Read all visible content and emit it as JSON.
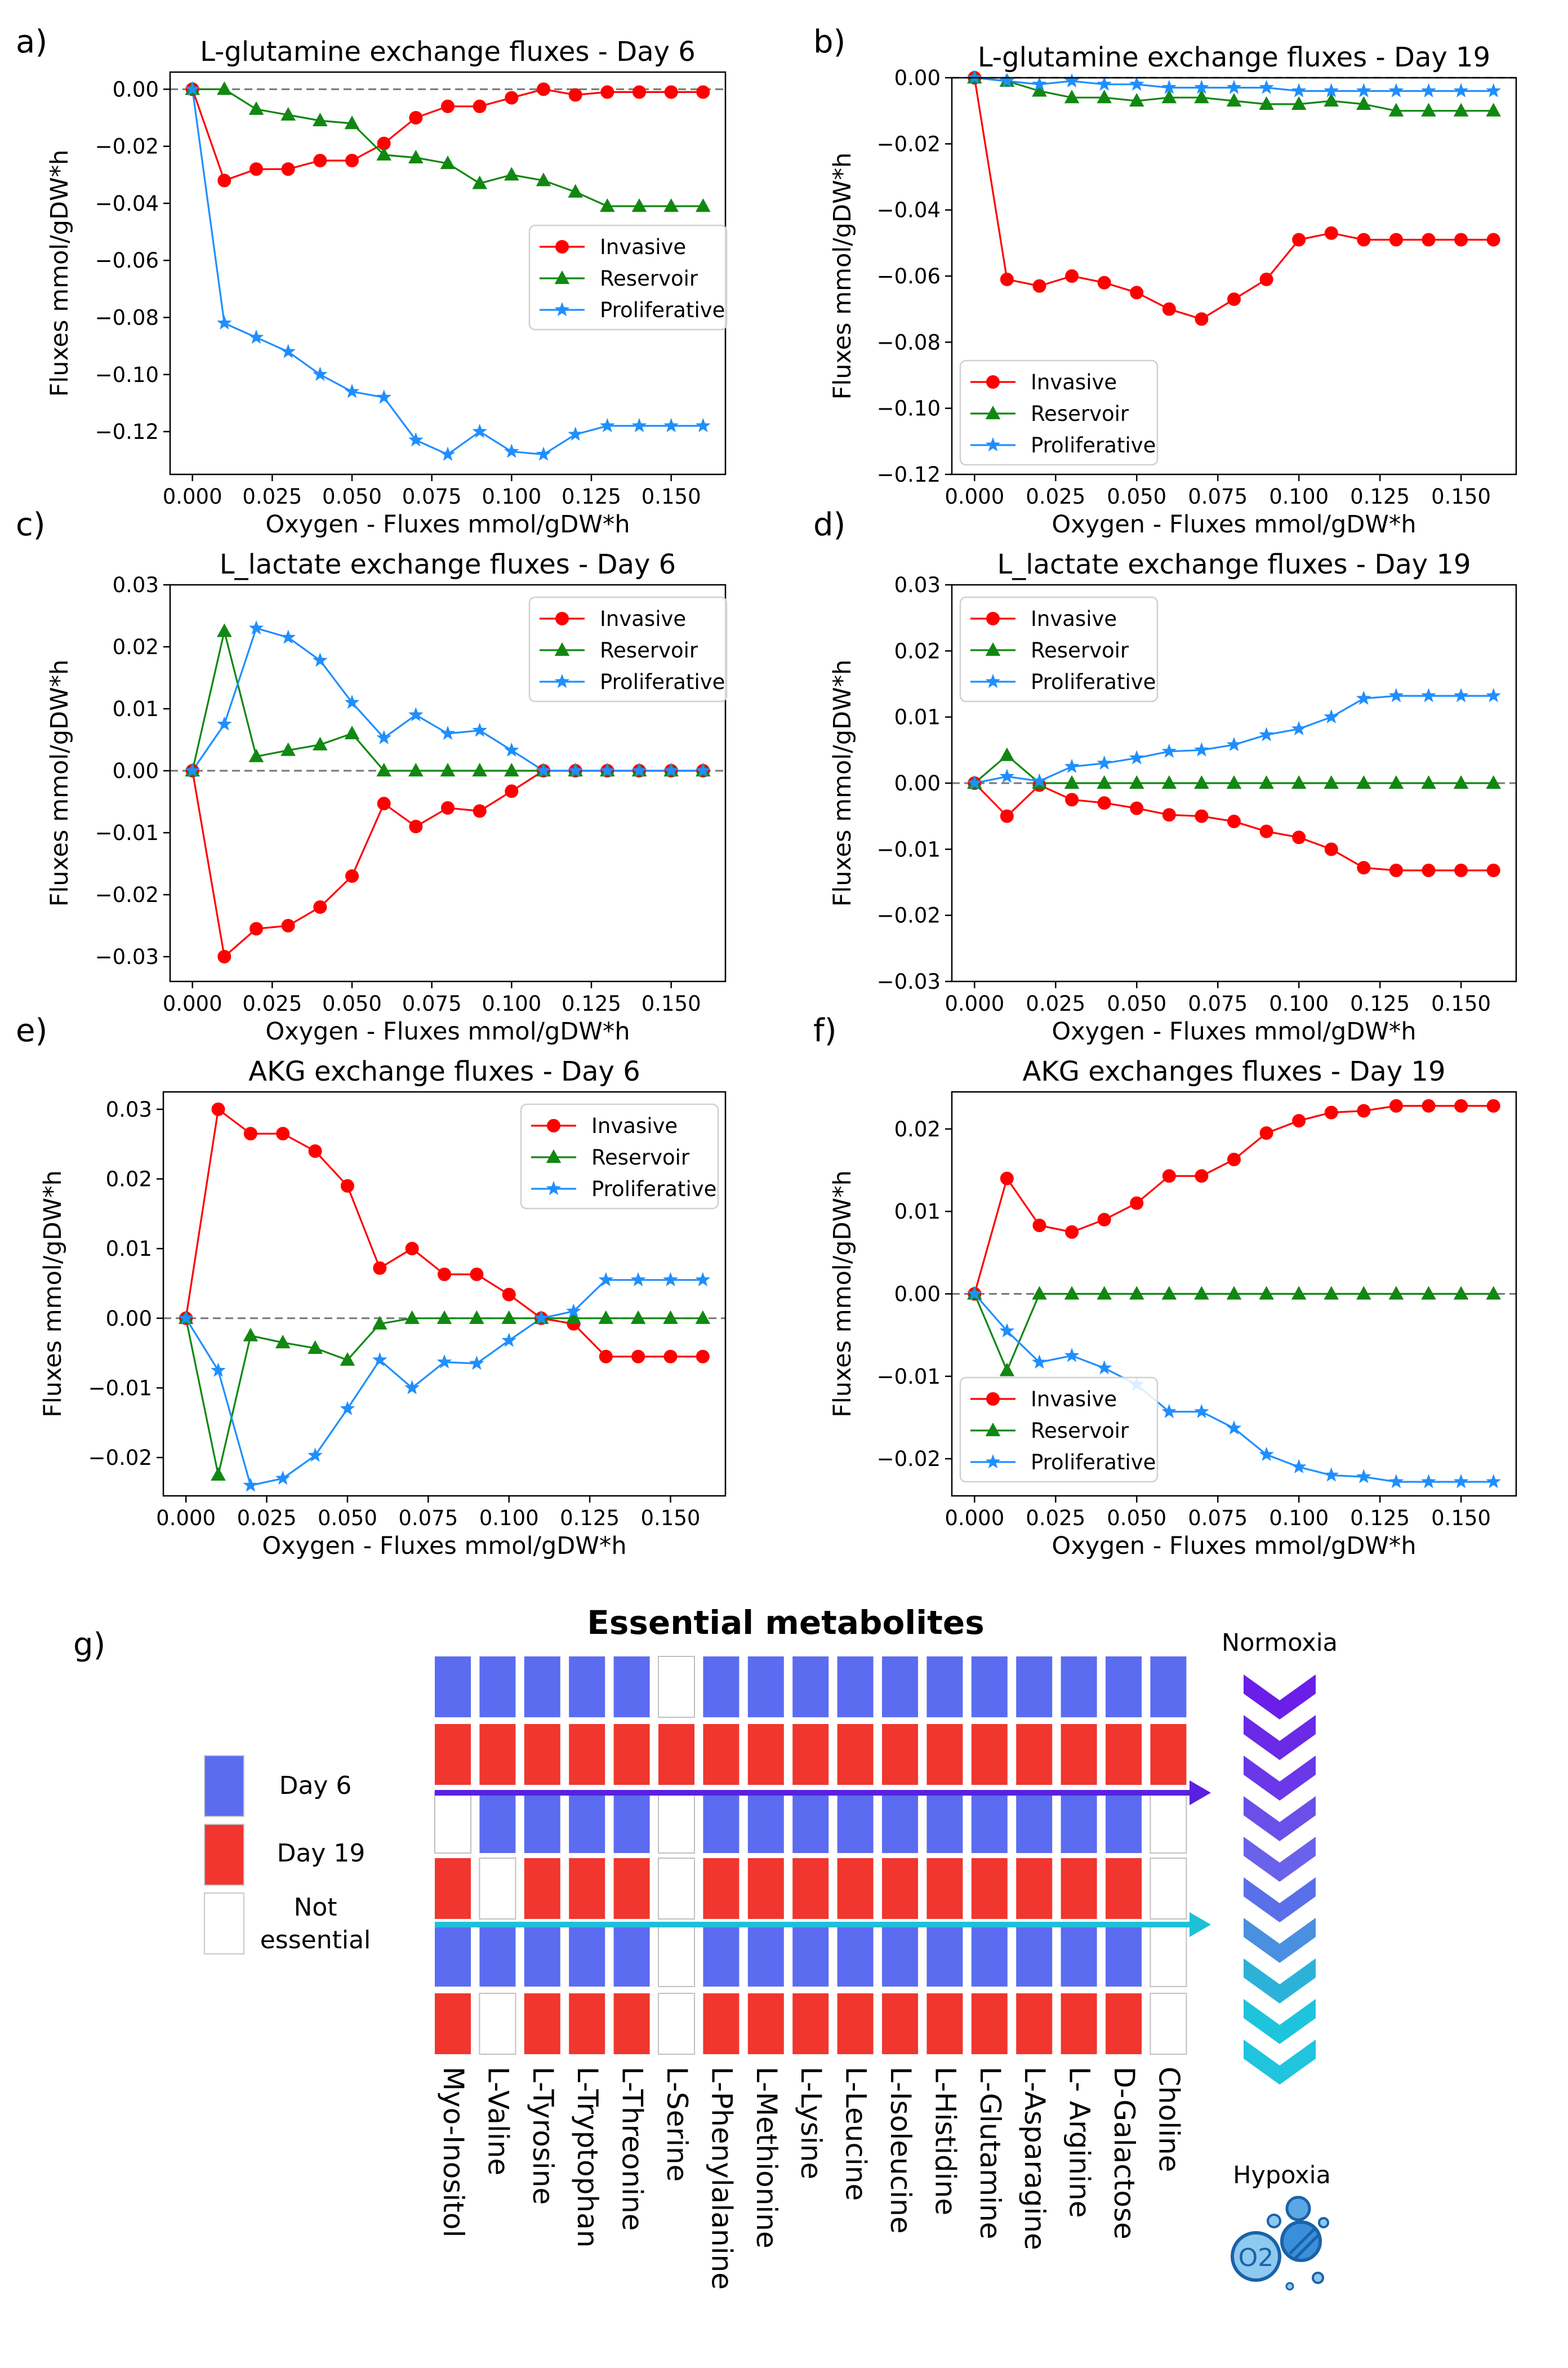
{
  "figure": {
    "panel_g": {
      "label": "g)",
      "title": "Essential metabolites",
      "legend": [
        {
          "name": "Day 6",
          "color": "#5b6cf0"
        },
        {
          "name": "Day 19",
          "color": "#f0362f"
        },
        {
          "name": "Not",
          "name2": "essential",
          "color": "#ffffff"
        }
      ],
      "metabolites": [
        "Myo-Inositol",
        "L-Valine",
        "L-Tyrosine",
        "L-Tryptophan",
        "L-Threonine",
        "L-Serine",
        "L-Phenylalanine",
        "L-Methionine",
        "L-Lysine",
        "L-Leucine",
        "L-Isoleucine",
        "L-Histidine",
        "L-Glutamine",
        "L-Asparagine",
        "L- Arginine",
        "D-Galactose",
        "Choline"
      ],
      "matrix": [
        "BBBBBNBBBBBBBBBBB",
        "RRRRRRRRRRRRRRRRR",
        "NBBBBNBBBBBBBBBBN",
        "RNRRRNRRRRRRRRRRN",
        "BBBBBNBBBBBBBBBBN",
        "RNRRRNRRRRRRRRRRN"
      ],
      "normoxia_label": "Normoxia",
      "hypoxia_label": "Hypoxia",
      "o2_label": "O2",
      "arrow_colors": [
        "#5a20e0",
        "#1ec0d8"
      ],
      "chevron_colors": [
        "#6a1ee8",
        "#6a2ae6",
        "#6a38e8",
        "#6a50e8",
        "#6a62ea",
        "#5a70e8",
        "#4a90e0",
        "#2cb2d8",
        "#1ec4dc",
        "#20c4de"
      ]
    }
  },
  "chart_data": [
    {
      "id": "a",
      "label": "a)",
      "type": "line",
      "title": "L-glutamine exchange fluxes - Day 6",
      "xlabel": "Oxygen - Fluxes mmol/gDW*h",
      "ylabel": "Fluxes mmol/gDW*h",
      "xlim": [
        -0.007,
        0.167
      ],
      "ylim": [
        -0.135,
        0.006
      ],
      "xticks": [
        0,
        0.025,
        0.05,
        0.075,
        0.1,
        0.125,
        0.15
      ],
      "xtick_labels": [
        "0.000",
        "0.025",
        "0.050",
        "0.075",
        "0.100",
        "0.125",
        "0.150"
      ],
      "yticks": [
        -0.12,
        -0.1,
        -0.08,
        -0.06,
        -0.04,
        -0.02,
        0
      ],
      "ytick_labels": [
        "−0.12",
        "−0.10",
        "−0.08",
        "−0.06",
        "−0.04",
        "−0.02",
        "0.00"
      ],
      "legend_position": "center-right",
      "x": [
        0,
        0.01,
        0.02,
        0.03,
        0.04,
        0.05,
        0.06,
        0.07,
        0.08,
        0.09,
        0.1,
        0.11,
        0.12,
        0.13,
        0.14,
        0.15,
        0.16
      ],
      "series": [
        {
          "name": "Invasive",
          "values": [
            0,
            -0.032,
            -0.028,
            -0.028,
            -0.025,
            -0.025,
            -0.019,
            -0.01,
            -0.006,
            -0.006,
            -0.003,
            0,
            -0.002,
            -0.001,
            -0.001,
            -0.001,
            -0.001
          ]
        },
        {
          "name": "Reservoir",
          "values": [
            0,
            0,
            -0.007,
            -0.009,
            -0.011,
            -0.012,
            -0.023,
            -0.024,
            -0.026,
            -0.033,
            -0.03,
            -0.032,
            -0.036,
            -0.041,
            -0.041,
            -0.041,
            -0.041
          ]
        },
        {
          "name": "Proliferative",
          "values": [
            0,
            -0.082,
            -0.087,
            -0.092,
            -0.1,
            -0.106,
            -0.108,
            -0.123,
            -0.128,
            -0.12,
            -0.127,
            -0.128,
            -0.121,
            -0.118,
            -0.118,
            -0.118,
            -0.118
          ]
        }
      ]
    },
    {
      "id": "b",
      "label": "b)",
      "type": "line",
      "title": "L-glutamine exchange fluxes - Day 19",
      "xlabel": "Oxygen - Fluxes mmol/gDW*h",
      "ylabel": "Fluxes mmol/gDW*h",
      "xlim": [
        -0.007,
        0.167
      ],
      "ylim": [
        -0.12,
        0.0
      ],
      "xticks": [
        0,
        0.025,
        0.05,
        0.075,
        0.1,
        0.125,
        0.15
      ],
      "xtick_labels": [
        "0.000",
        "0.025",
        "0.050",
        "0.075",
        "0.100",
        "0.125",
        "0.150"
      ],
      "yticks": [
        -0.12,
        -0.1,
        -0.08,
        -0.06,
        -0.04,
        -0.02,
        0
      ],
      "ytick_labels": [
        "−0.12",
        "−0.10",
        "−0.08",
        "−0.06",
        "−0.04",
        "−0.02",
        "0.00"
      ],
      "legend_position": "lower-left",
      "x": [
        0,
        0.01,
        0.02,
        0.03,
        0.04,
        0.05,
        0.06,
        0.07,
        0.08,
        0.09,
        0.1,
        0.11,
        0.12,
        0.13,
        0.14,
        0.15,
        0.16
      ],
      "series": [
        {
          "name": "Invasive",
          "values": [
            0,
            -0.061,
            -0.063,
            -0.06,
            -0.062,
            -0.065,
            -0.07,
            -0.073,
            -0.067,
            -0.061,
            -0.049,
            -0.047,
            -0.049,
            -0.049,
            -0.049,
            -0.049,
            -0.049
          ]
        },
        {
          "name": "Reservoir",
          "values": [
            0,
            -0.001,
            -0.004,
            -0.006,
            -0.006,
            -0.007,
            -0.006,
            -0.006,
            -0.007,
            -0.008,
            -0.008,
            -0.007,
            -0.008,
            -0.01,
            -0.01,
            -0.01,
            -0.01
          ]
        },
        {
          "name": "Proliferative",
          "values": [
            0,
            -0.001,
            -0.002,
            -0.001,
            -0.002,
            -0.002,
            -0.003,
            -0.003,
            -0.003,
            -0.003,
            -0.004,
            -0.004,
            -0.004,
            -0.004,
            -0.004,
            -0.004,
            -0.004
          ]
        }
      ]
    },
    {
      "id": "c",
      "label": "c)",
      "type": "line",
      "title": "L_lactate exchange fluxes - Day 6",
      "xlabel": "Oxygen - Fluxes mmol/gDW*h",
      "ylabel": "Fluxes mmol/gDW*h",
      "xlim": [
        -0.007,
        0.167
      ],
      "ylim": [
        -0.034,
        0.03
      ],
      "xticks": [
        0,
        0.025,
        0.05,
        0.075,
        0.1,
        0.125,
        0.15
      ],
      "xtick_labels": [
        "0.000",
        "0.025",
        "0.050",
        "0.075",
        "0.100",
        "0.125",
        "0.150"
      ],
      "yticks": [
        -0.03,
        -0.02,
        -0.01,
        0,
        0.01,
        0.02,
        0.03
      ],
      "ytick_labels": [
        "−0.03",
        "−0.02",
        "−0.01",
        "0.00",
        "0.01",
        "0.02",
        "0.03"
      ],
      "legend_position": "upper-right",
      "x": [
        0,
        0.01,
        0.02,
        0.03,
        0.04,
        0.05,
        0.06,
        0.07,
        0.08,
        0.09,
        0.1,
        0.11,
        0.12,
        0.13,
        0.14,
        0.15,
        0.16
      ],
      "series": [
        {
          "name": "Invasive",
          "values": [
            0,
            -0.03,
            -0.0255,
            -0.025,
            -0.022,
            -0.017,
            -0.0053,
            -0.009,
            -0.006,
            -0.0065,
            -0.0033,
            0,
            0,
            0,
            0,
            0,
            0
          ]
        },
        {
          "name": "Reservoir",
          "values": [
            0,
            0.0225,
            0.0023,
            0.0033,
            0.0042,
            0.006,
            0,
            0,
            0,
            0,
            0,
            0,
            0,
            0,
            0,
            0,
            0
          ]
        },
        {
          "name": "Proliferative",
          "values": [
            0,
            0.0075,
            0.023,
            0.0215,
            0.0178,
            0.011,
            0.0053,
            0.009,
            0.006,
            0.0065,
            0.0033,
            0,
            0,
            0,
            0,
            0,
            0
          ]
        }
      ]
    },
    {
      "id": "d",
      "label": "d)",
      "type": "line",
      "title": "L_lactate exchange fluxes - Day 19",
      "xlabel": "Oxygen - Fluxes mmol/gDW*h",
      "ylabel": "Fluxes mmol/gDW*h",
      "xlim": [
        -0.007,
        0.167
      ],
      "ylim": [
        -0.03,
        0.03
      ],
      "xticks": [
        0,
        0.025,
        0.05,
        0.075,
        0.1,
        0.125,
        0.15
      ],
      "xtick_labels": [
        "0.000",
        "0.025",
        "0.050",
        "0.075",
        "0.100",
        "0.125",
        "0.150"
      ],
      "yticks": [
        -0.03,
        -0.02,
        -0.01,
        0,
        0.01,
        0.02,
        0.03
      ],
      "ytick_labels": [
        "−0.03",
        "−0.02",
        "−0.01",
        "0.00",
        "0.01",
        "0.02",
        "0.03"
      ],
      "legend_position": "upper-left",
      "x": [
        0,
        0.01,
        0.02,
        0.03,
        0.04,
        0.05,
        0.06,
        0.07,
        0.08,
        0.09,
        0.1,
        0.11,
        0.12,
        0.13,
        0.14,
        0.15,
        0.16
      ],
      "series": [
        {
          "name": "Invasive",
          "values": [
            0,
            -0.005,
            -0.0003,
            -0.0025,
            -0.003,
            -0.0038,
            -0.0048,
            -0.005,
            -0.0058,
            -0.0073,
            -0.0082,
            -0.01,
            -0.0128,
            -0.0132,
            -0.0132,
            -0.0132,
            -0.0132
          ]
        },
        {
          "name": "Reservoir",
          "values": [
            0,
            0.0042,
            0,
            0,
            0,
            0,
            0,
            0,
            0,
            0,
            0,
            0,
            0,
            0,
            0,
            0,
            0
          ]
        },
        {
          "name": "Proliferative",
          "values": [
            0,
            0.001,
            0.0003,
            0.0025,
            0.003,
            0.0038,
            0.0048,
            0.005,
            0.0058,
            0.0073,
            0.0082,
            0.01,
            0.0128,
            0.0132,
            0.0132,
            0.0132,
            0.0132
          ]
        }
      ]
    },
    {
      "id": "e",
      "label": "e)",
      "type": "line",
      "title": "AKG exchange fluxes - Day 6",
      "xlabel": "Oxygen - Fluxes mmol/gDW*h",
      "ylabel": "Fluxes mmol/gDW*h",
      "xlim": [
        -0.007,
        0.167
      ],
      "ylim": [
        -0.0255,
        0.0325
      ],
      "xticks": [
        0,
        0.025,
        0.05,
        0.075,
        0.1,
        0.125,
        0.15
      ],
      "xtick_labels": [
        "0.000",
        "0.025",
        "0.050",
        "0.075",
        "0.100",
        "0.125",
        "0.150"
      ],
      "yticks": [
        -0.02,
        -0.01,
        0,
        0.01,
        0.02,
        0.03
      ],
      "ytick_labels": [
        "−0.02",
        "−0.01",
        "0.00",
        "0.01",
        "0.02",
        "0.03"
      ],
      "legend_position": "upper-right",
      "x": [
        0,
        0.01,
        0.02,
        0.03,
        0.04,
        0.05,
        0.06,
        0.07,
        0.08,
        0.09,
        0.1,
        0.11,
        0.12,
        0.13,
        0.14,
        0.15,
        0.16
      ],
      "series": [
        {
          "name": "Invasive",
          "values": [
            0,
            0.03,
            0.0265,
            0.0265,
            0.024,
            0.019,
            0.0072,
            0.01,
            0.0063,
            0.0063,
            0.0034,
            0,
            -0.0008,
            -0.0055,
            -0.0055,
            -0.0055,
            -0.0055
          ]
        },
        {
          "name": "Reservoir",
          "values": [
            0,
            -0.0225,
            -0.0025,
            -0.0035,
            -0.0043,
            -0.006,
            -0.0008,
            0,
            0,
            0,
            0,
            0,
            0,
            0,
            0,
            0,
            0
          ]
        },
        {
          "name": "Proliferative",
          "values": [
            0,
            -0.0075,
            -0.024,
            -0.023,
            -0.0197,
            -0.013,
            -0.006,
            -0.01,
            -0.0063,
            -0.0065,
            -0.0032,
            0,
            0.001,
            0.0055,
            0.0055,
            0.0055,
            0.0055
          ]
        }
      ]
    },
    {
      "id": "f",
      "label": "f)",
      "type": "line",
      "title": "AKG exchanges fluxes - Day 19",
      "xlabel": "Oxygen - Fluxes mmol/gDW*h",
      "ylabel": "Fluxes mmol/gDW*h",
      "xlim": [
        -0.007,
        0.167
      ],
      "ylim": [
        -0.0245,
        0.0245
      ],
      "xticks": [
        0,
        0.025,
        0.05,
        0.075,
        0.1,
        0.125,
        0.15
      ],
      "xtick_labels": [
        "0.000",
        "0.025",
        "0.050",
        "0.075",
        "0.100",
        "0.125",
        "0.150"
      ],
      "yticks": [
        -0.02,
        -0.01,
        0,
        0.01,
        0.02
      ],
      "ytick_labels": [
        "−0.02",
        "−0.01",
        "0.00",
        "0.01",
        "0.02"
      ],
      "legend_position": "lower-left",
      "x": [
        0,
        0.01,
        0.02,
        0.03,
        0.04,
        0.05,
        0.06,
        0.07,
        0.08,
        0.09,
        0.1,
        0.11,
        0.12,
        0.13,
        0.14,
        0.15,
        0.16
      ],
      "series": [
        {
          "name": "Invasive",
          "values": [
            0,
            0.014,
            0.0083,
            0.0075,
            0.009,
            0.011,
            0.0143,
            0.0143,
            0.0163,
            0.0195,
            0.021,
            0.022,
            0.0222,
            0.0228,
            0.0228,
            0.0228,
            0.0228
          ]
        },
        {
          "name": "Reservoir",
          "values": [
            0,
            -0.0093,
            0,
            0,
            0,
            0,
            0,
            0,
            0,
            0,
            0,
            0,
            0,
            0,
            0,
            0,
            0
          ]
        },
        {
          "name": "Proliferative",
          "values": [
            0,
            -0.0045,
            -0.0083,
            -0.0075,
            -0.009,
            -0.011,
            -0.0143,
            -0.0143,
            -0.0163,
            -0.0195,
            -0.021,
            -0.022,
            -0.0222,
            -0.0228,
            -0.0228,
            -0.0228,
            -0.0228
          ]
        }
      ]
    }
  ],
  "series_styles": [
    {
      "name": "Invasive",
      "color": "#ff0000",
      "marker": "circle"
    },
    {
      "name": "Reservoir",
      "color": "#118811",
      "marker": "triangle"
    },
    {
      "name": "Proliferative",
      "color": "#1f8fff",
      "marker": "star"
    }
  ]
}
